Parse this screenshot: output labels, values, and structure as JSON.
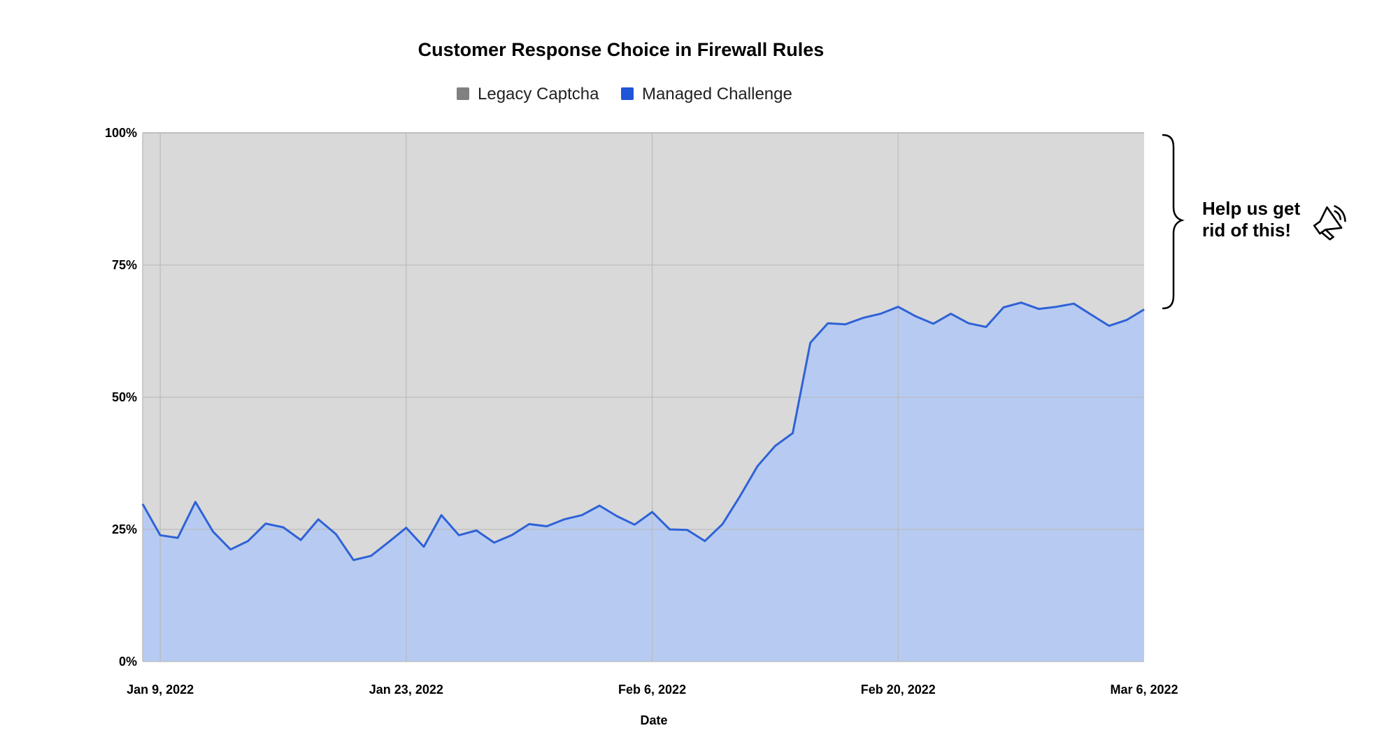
{
  "colors": {
    "legacy_fill": "#d9d9d9",
    "legacy_swatch": "#808080",
    "managed_fill": "#b7cbf2",
    "managed_line": "#2f62d6",
    "managed_swatch": "#1f55d6",
    "grid": "#b9b9b9",
    "background": "#ffffff"
  },
  "annotation": {
    "line1": "Help us get",
    "line2": "rid of this!",
    "icon": "megaphone-icon"
  },
  "chart_data": {
    "type": "area",
    "stacked": "percent",
    "title": "Customer Response Choice in Firewall Rules",
    "xlabel": "Date",
    "ylabel": "",
    "legend_position": "top",
    "grid": true,
    "ylim": [
      0,
      100
    ],
    "y_ticks": [
      "0%",
      "25%",
      "50%",
      "75%",
      "100%"
    ],
    "x_range": [
      "2022-01-08",
      "2022-03-06"
    ],
    "x_ticks": [
      {
        "date": "2022-01-09",
        "label": "Jan 9, 2022"
      },
      {
        "date": "2022-01-23",
        "label": "Jan 23, 2022"
      },
      {
        "date": "2022-02-06",
        "label": "Feb 6, 2022"
      },
      {
        "date": "2022-02-20",
        "label": "Feb 20, 2022"
      },
      {
        "date": "2022-03-06",
        "label": "Mar 6, 2022"
      }
    ],
    "x": [
      "2022-01-08",
      "2022-01-09",
      "2022-01-10",
      "2022-01-11",
      "2022-01-12",
      "2022-01-13",
      "2022-01-14",
      "2022-01-15",
      "2022-01-16",
      "2022-01-17",
      "2022-01-18",
      "2022-01-19",
      "2022-01-20",
      "2022-01-21",
      "2022-01-22",
      "2022-01-23",
      "2022-01-24",
      "2022-01-25",
      "2022-01-26",
      "2022-01-27",
      "2022-01-28",
      "2022-01-29",
      "2022-01-30",
      "2022-01-31",
      "2022-02-01",
      "2022-02-02",
      "2022-02-03",
      "2022-02-04",
      "2022-02-05",
      "2022-02-06",
      "2022-02-07",
      "2022-02-08",
      "2022-02-09",
      "2022-02-10",
      "2022-02-11",
      "2022-02-12",
      "2022-02-13",
      "2022-02-14",
      "2022-02-15",
      "2022-02-16",
      "2022-02-17",
      "2022-02-18",
      "2022-02-19",
      "2022-02-20",
      "2022-02-21",
      "2022-02-22",
      "2022-02-23",
      "2022-02-24",
      "2022-02-25",
      "2022-02-26",
      "2022-02-27",
      "2022-02-28",
      "2022-03-01",
      "2022-03-02",
      "2022-03-03",
      "2022-03-04",
      "2022-03-05",
      "2022-03-06"
    ],
    "series": [
      {
        "name": "Managed Challenge",
        "values": [
          29.8,
          23.9,
          23.4,
          30.2,
          24.6,
          21.2,
          22.8,
          26.1,
          25.4,
          23.0,
          26.9,
          24.1,
          19.2,
          20.0,
          22.6,
          25.3,
          21.7,
          27.7,
          23.9,
          24.8,
          22.5,
          23.9,
          26.0,
          25.6,
          26.9,
          27.7,
          29.5,
          27.5,
          25.9,
          28.3,
          25.0,
          24.9,
          22.8,
          26.0,
          31.3,
          37.0,
          40.8,
          43.2,
          60.3,
          64.0,
          63.8,
          65.0,
          65.8,
          67.1,
          65.3,
          63.9,
          65.8,
          64.0,
          63.3,
          67.0,
          67.9,
          66.7,
          67.1,
          67.7,
          65.6,
          63.5,
          64.6,
          66.6
        ]
      },
      {
        "name": "Legacy Captcha",
        "values": [
          70.2,
          76.1,
          76.6,
          69.8,
          75.4,
          78.8,
          77.2,
          73.9,
          74.6,
          77.0,
          73.1,
          75.9,
          80.8,
          80.0,
          77.4,
          74.7,
          78.3,
          72.3,
          76.1,
          75.2,
          77.5,
          76.1,
          74.0,
          74.4,
          73.1,
          72.3,
          70.5,
          72.5,
          74.1,
          71.7,
          75.0,
          75.1,
          77.2,
          74.0,
          68.7,
          63.0,
          59.2,
          56.8,
          39.7,
          36.0,
          36.2,
          35.0,
          34.2,
          32.9,
          34.7,
          36.1,
          34.2,
          36.0,
          36.7,
          33.0,
          32.1,
          33.3,
          32.9,
          32.3,
          34.4,
          36.5,
          35.4,
          33.4
        ]
      }
    ]
  }
}
